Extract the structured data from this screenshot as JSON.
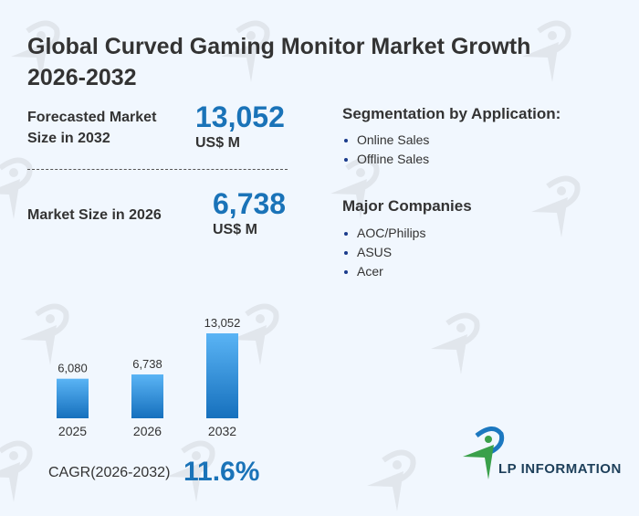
{
  "title": "Global Curved Gaming Monitor Market Growth 2026-2032",
  "forecast": {
    "label": "Forecasted Market Size in 2032",
    "value": "13,052",
    "unit": "US$ M"
  },
  "current": {
    "label": "Market Size in 2026",
    "value": "6,738",
    "unit": "US$ M"
  },
  "segmentation": {
    "heading": "Segmentation by Application:",
    "items": [
      "Online Sales",
      "Offline Sales"
    ]
  },
  "companies": {
    "heading": "Major Companies",
    "items": [
      "AOC/Philips",
      "ASUS",
      "Acer"
    ]
  },
  "cagr": {
    "label": "CAGR(2026-2032)",
    "value": "11.6%"
  },
  "logo_text": "LP INFORMATION",
  "watermark": "LP INFORMATION",
  "colors": {
    "accent": "#1a73b8",
    "bar_top": "#5ab4f5",
    "bar_bottom": "#1670bd"
  },
  "chart_data": {
    "type": "bar",
    "categories": [
      "2025",
      "2026",
      "2032"
    ],
    "values": [
      6080,
      6738,
      13052
    ],
    "labels": [
      "6,080",
      "6,738",
      "13,052"
    ],
    "ylim": [
      0,
      13052
    ],
    "title": "",
    "xlabel": "",
    "ylabel": ""
  }
}
